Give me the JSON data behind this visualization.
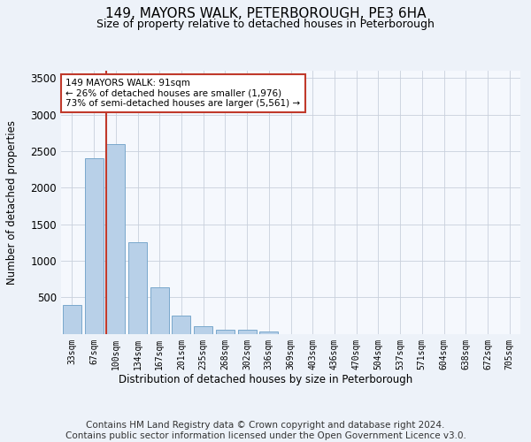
{
  "title": "149, MAYORS WALK, PETERBOROUGH, PE3 6HA",
  "subtitle": "Size of property relative to detached houses in Peterborough",
  "xlabel": "Distribution of detached houses by size in Peterborough",
  "ylabel": "Number of detached properties",
  "categories": [
    "33sqm",
    "67sqm",
    "100sqm",
    "134sqm",
    "167sqm",
    "201sqm",
    "235sqm",
    "268sqm",
    "302sqm",
    "336sqm",
    "369sqm",
    "403sqm",
    "436sqm",
    "470sqm",
    "504sqm",
    "537sqm",
    "571sqm",
    "604sqm",
    "638sqm",
    "672sqm",
    "705sqm"
  ],
  "values": [
    390,
    2400,
    2600,
    1250,
    640,
    250,
    100,
    60,
    50,
    30,
    0,
    0,
    0,
    0,
    0,
    0,
    0,
    0,
    0,
    0,
    0
  ],
  "bar_color": "#b8d0e8",
  "bar_edge_color": "#7aa8cc",
  "vline_color": "#c0392b",
  "annotation_text": "149 MAYORS WALK: 91sqm\n← 26% of detached houses are smaller (1,976)\n73% of semi-detached houses are larger (5,561) →",
  "annotation_box_color": "#ffffff",
  "annotation_box_edge": "#c0392b",
  "ylim": [
    0,
    3600
  ],
  "yticks": [
    0,
    500,
    1000,
    1500,
    2000,
    2500,
    3000,
    3500
  ],
  "footer": "Contains HM Land Registry data © Crown copyright and database right 2024.\nContains public sector information licensed under the Open Government Licence v3.0.",
  "bg_color": "#edf2f9",
  "plot_bg_color": "#f5f8fd",
  "grid_color": "#c8d0dc",
  "title_fontsize": 11,
  "subtitle_fontsize": 9,
  "footer_fontsize": 7.5
}
